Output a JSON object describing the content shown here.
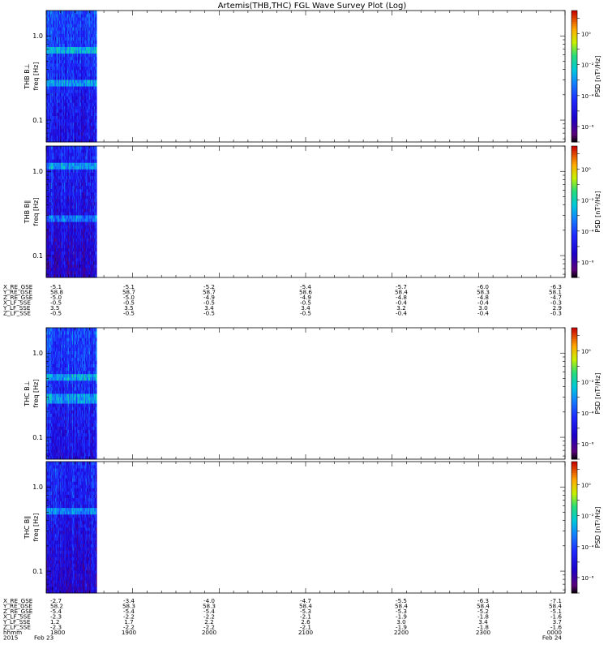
{
  "title": "Artemis(THB,THC) FGL Wave Survey Plot (Log)",
  "colorbar": {
    "label": "PSD [nT²/Hz]",
    "tick_labels": [
      "10⁰",
      "10⁻²",
      "10⁻⁴",
      "10⁻⁶"
    ],
    "tick_values_log10": [
      0,
      -2,
      -4,
      -6
    ],
    "range_log10": [
      -7,
      1.5
    ]
  },
  "ephem_blocks": [
    {
      "rows": [
        {
          "label": "X_RE_GSE",
          "values": [
            "-5.1",
            "-5.1",
            "-5.2",
            "-5.4",
            "-5.7",
            "-6.0",
            "-6.3"
          ]
        },
        {
          "label": "Y_RE_GSE",
          "values": [
            "58.8",
            "58.7",
            "58.7",
            "58.6",
            "58.4",
            "58.3",
            "58.1"
          ]
        },
        {
          "label": "Z_RE_GSE",
          "values": [
            "-5.0",
            "-5.0",
            "-4.9",
            "-4.9",
            "-4.8",
            "-4.8",
            "-4.7"
          ]
        },
        {
          "label": "X_LF_SSE",
          "values": [
            "-0.5",
            "-0.5",
            "-0.5",
            "-0.5",
            "-0.4",
            "-0.4",
            "-0.3"
          ]
        },
        {
          "label": "Y_LF_SSE",
          "values": [
            "3.5",
            "3.5",
            "3.4",
            "3.4",
            "3.2",
            "3.0",
            "2.9"
          ]
        },
        {
          "label": "Z_LF_SSE",
          "values": [
            "-0.5",
            "-0.5",
            "-0.5",
            "-0.5",
            "-0.4",
            "-0.4",
            "-0.3"
          ]
        }
      ]
    },
    {
      "rows": [
        {
          "label": "X_RE_GSE",
          "values": [
            "-2.7",
            "-3.4",
            "-4.0",
            "-4.7",
            "-5.5",
            "-6.3",
            "-7.1"
          ]
        },
        {
          "label": "Y_RE_GSE",
          "values": [
            "58.2",
            "58.3",
            "58.3",
            "58.4",
            "58.4",
            "58.4",
            "58.4"
          ]
        },
        {
          "label": "Z_RE_GSE",
          "values": [
            "-5.4",
            "-5.4",
            "-5.4",
            "-5.3",
            "-5.3",
            "-5.2",
            "-5.1"
          ]
        },
        {
          "label": "X_LF_SSE",
          "values": [
            "-2.3",
            "-2.2",
            "-2.2",
            "-2.1",
            "-1.9",
            "-1.8",
            "-1.6"
          ]
        },
        {
          "label": "Y_LF_SSE",
          "values": [
            "1.2",
            "1.7",
            "2.2",
            "2.6",
            "3.0",
            "3.4",
            "3.7"
          ]
        },
        {
          "label": "Z_LF_SSE",
          "values": [
            "-2.3",
            "-2.2",
            "-2.2",
            "-2.1",
            "-1.9",
            "-1.8",
            "-1.6"
          ]
        }
      ]
    }
  ],
  "time_axis": {
    "row_labels": [
      "hhmm",
      "2015"
    ],
    "hhmm": [
      "1800",
      "1900",
      "2000",
      "2100",
      "2200",
      "2300",
      "0000"
    ],
    "date_labels": [
      "Feb 23",
      "Feb 24"
    ]
  },
  "chart_data": [
    {
      "type": "heatmap",
      "probe": "THB",
      "ylabel_name": "THB B⊥",
      "ylabel_unit": "freq [Hz]",
      "y_scale": "log",
      "ylim": [
        0.055,
        2.0
      ],
      "y_tick_labels": [
        "1.0",
        "0.1"
      ],
      "y_tick_values": [
        1.0,
        0.1
      ],
      "x_range_hhmm": [
        "1800",
        "0000"
      ],
      "data_coverage_hhmm": [
        "1800",
        "1835"
      ],
      "psd_typical_log10": [
        -6,
        -3
      ],
      "bright_bands_hz": [
        0.7,
        0.27
      ]
    },
    {
      "type": "heatmap",
      "probe": "THB",
      "ylabel_name": "THB B∥",
      "ylabel_unit": "freq [Hz]",
      "y_scale": "log",
      "ylim": [
        0.055,
        2.0
      ],
      "y_tick_labels": [
        "1.0",
        "0.1"
      ],
      "y_tick_values": [
        1.0,
        0.1
      ],
      "x_range_hhmm": [
        "1800",
        "0000"
      ],
      "data_coverage_hhmm": [
        "1800",
        "1835"
      ],
      "psd_typical_log10": [
        -6.5,
        -3.5
      ],
      "bright_bands_hz": [
        1.15,
        0.27
      ]
    },
    {
      "type": "heatmap",
      "probe": "THC",
      "ylabel_name": "THC B⊥",
      "ylabel_unit": "freq [Hz]",
      "y_scale": "log",
      "ylim": [
        0.055,
        2.0
      ],
      "y_tick_labels": [
        "1.0",
        "0.1"
      ],
      "y_tick_values": [
        1.0,
        0.1
      ],
      "x_range_hhmm": [
        "1800",
        "0000"
      ],
      "data_coverage_hhmm": [
        "1800",
        "1835"
      ],
      "psd_typical_log10": [
        -6,
        -3
      ],
      "bright_bands_hz": [
        0.5,
        0.29
      ]
    },
    {
      "type": "heatmap",
      "probe": "THC",
      "ylabel_name": "THC B∥",
      "ylabel_unit": "freq [Hz]",
      "y_scale": "log",
      "ylim": [
        0.055,
        2.0
      ],
      "y_tick_labels": [
        "1.0",
        "0.1"
      ],
      "y_tick_values": [
        1.0,
        0.1
      ],
      "x_range_hhmm": [
        "1800",
        "0000"
      ],
      "data_coverage_hhmm": [
        "1800",
        "1835"
      ],
      "psd_typical_log10": [
        -6.5,
        -3.5
      ],
      "bright_bands_hz": [
        0.5
      ]
    }
  ]
}
